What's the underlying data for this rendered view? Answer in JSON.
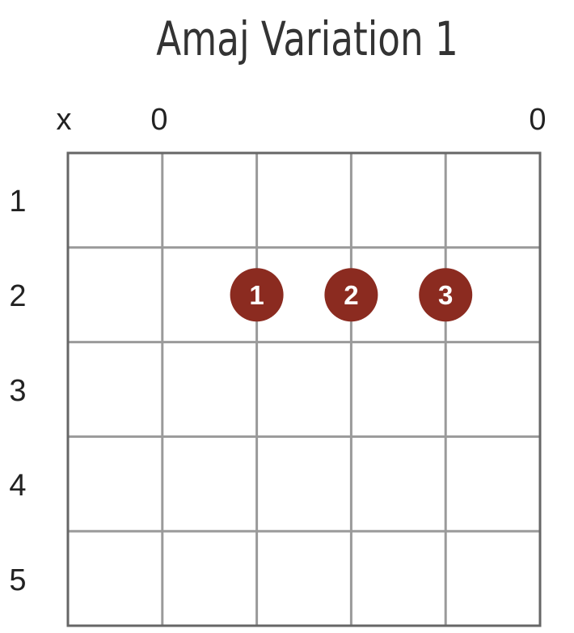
{
  "title": "Amaj Variation 1",
  "string_markers": [
    "x",
    "0",
    "",
    "",
    "",
    "0"
  ],
  "fret_labels": [
    "1",
    "2",
    "3",
    "4",
    "5"
  ],
  "dots": [
    {
      "string": 3,
      "fret": 2,
      "finger": "1"
    },
    {
      "string": 4,
      "fret": 2,
      "finger": "2"
    },
    {
      "string": 5,
      "fret": 2,
      "finger": "3"
    }
  ],
  "colors": {
    "dot": "#8b2b20",
    "grid": "#9a9a9a",
    "border": "#666666",
    "text": "#222222"
  }
}
